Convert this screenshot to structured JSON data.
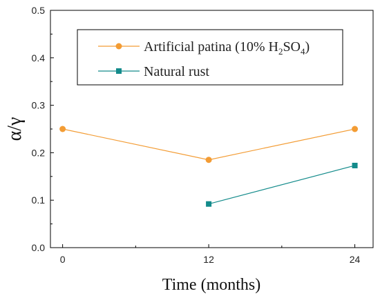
{
  "chart_data": {
    "type": "line",
    "title": "",
    "xlabel": "Time (months)",
    "ylabel": "α/γ",
    "x": [
      0,
      12,
      24
    ],
    "xlim": [
      -1,
      25.5
    ],
    "ylim": [
      0.0,
      0.5
    ],
    "xticks": [
      "0",
      "12",
      "24"
    ],
    "yticks": [
      "0.0",
      "0.1",
      "0.2",
      "0.3",
      "0.4",
      "0.5"
    ],
    "grid": false,
    "legend_position": "top-right",
    "series": [
      {
        "name": "Artificial patina (10% H2SO4)",
        "name_parts": [
          "Artificial patina (10% H",
          "2",
          "SO",
          "4",
          ")"
        ],
        "x": [
          0,
          12,
          24
        ],
        "values": [
          0.25,
          0.185,
          0.25
        ],
        "marker": "circle",
        "color": "#f39c34"
      },
      {
        "name": "Natural rust",
        "x": [
          12,
          24
        ],
        "values": [
          0.092,
          0.173
        ],
        "marker": "square",
        "color": "#138b8b"
      }
    ]
  }
}
